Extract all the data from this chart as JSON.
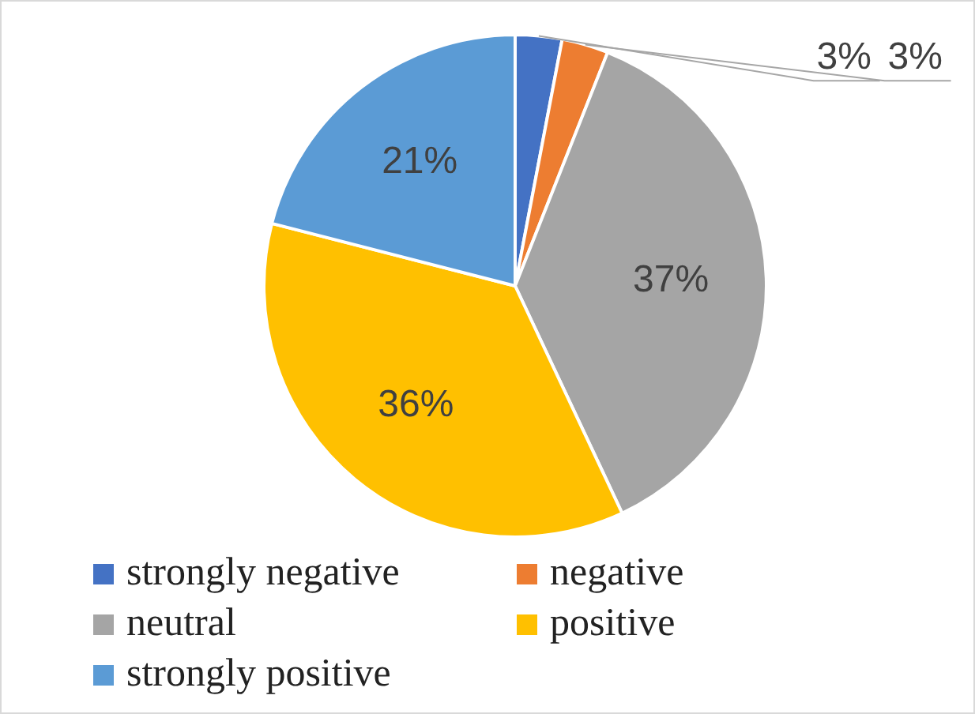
{
  "chart_data": {
    "type": "pie",
    "categories": [
      "strongly negative",
      "negative",
      "neutral",
      "positive",
      "strongly positive"
    ],
    "values": [
      3,
      3,
      37,
      36,
      21
    ],
    "colors": [
      "#4472c4",
      "#ed7d31",
      "#a5a5a5",
      "#ffc000",
      "#5b9bd5"
    ],
    "value_labels": [
      "3%",
      "3%",
      "37%",
      "36%",
      "21%"
    ],
    "legend": "bottom"
  }
}
